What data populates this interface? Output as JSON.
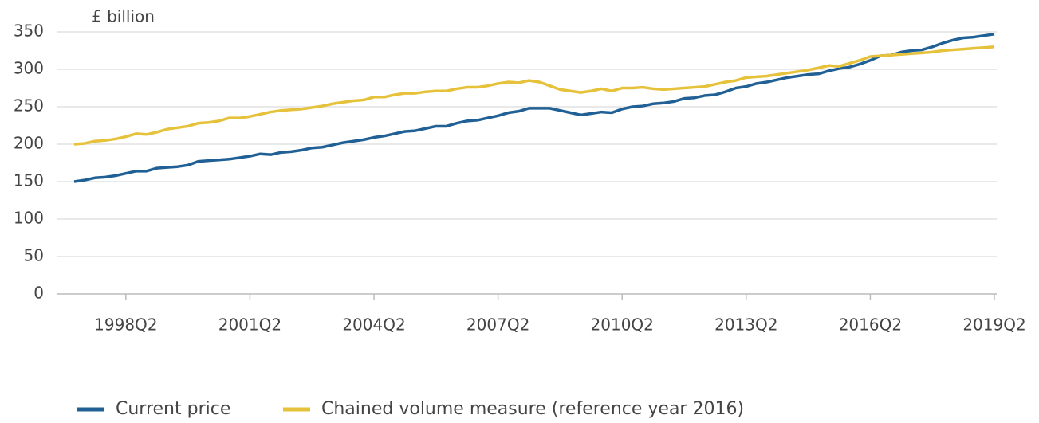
{
  "chart_data": {
    "type": "line",
    "y_label": "£ billion",
    "categories": [
      null,
      null,
      null,
      null,
      null,
      "1998Q2",
      null,
      null,
      null,
      null,
      null,
      null,
      null,
      null,
      null,
      null,
      null,
      "2001Q2",
      null,
      null,
      null,
      null,
      null,
      null,
      null,
      null,
      null,
      null,
      null,
      "2004Q2",
      null,
      null,
      null,
      null,
      null,
      null,
      null,
      null,
      null,
      null,
      null,
      "2007Q2",
      null,
      null,
      null,
      null,
      null,
      null,
      null,
      null,
      null,
      null,
      null,
      "2010Q2",
      null,
      null,
      null,
      null,
      null,
      null,
      null,
      null,
      null,
      null,
      null,
      "2013Q2",
      null,
      null,
      null,
      null,
      null,
      null,
      null,
      null,
      null,
      null,
      null,
      "2016Q2",
      null,
      null,
      null,
      null,
      null,
      null,
      null,
      null,
      null,
      null,
      null,
      "2019Q2"
    ],
    "series": [
      {
        "name": "Current price",
        "color": "#206095",
        "values": [
          150,
          152,
          155,
          156,
          158,
          161,
          164,
          164,
          168,
          169,
          170,
          172,
          177,
          178,
          179,
          180,
          182,
          184,
          187,
          186,
          189,
          190,
          192,
          195,
          196,
          199,
          202,
          204,
          206,
          209,
          211,
          214,
          217,
          218,
          221,
          224,
          224,
          228,
          231,
          232,
          235,
          238,
          242,
          244,
          248,
          248,
          248,
          245,
          242,
          239,
          241,
          243,
          242,
          247,
          250,
          251,
          254,
          255,
          257,
          261,
          262,
          265,
          266,
          270,
          275,
          277,
          281,
          283,
          286,
          289,
          291,
          293,
          294,
          298,
          301,
          303,
          307,
          312,
          318,
          319,
          323,
          325,
          326,
          330,
          335,
          339,
          342,
          343,
          345,
          347
        ]
      },
      {
        "name": "Chained volume measure (reference year 2016)",
        "color": "#e6c13a",
        "values": [
          200,
          201,
          204,
          205,
          207,
          210,
          214,
          213,
          216,
          220,
          222,
          224,
          228,
          229,
          231,
          235,
          235,
          237,
          240,
          243,
          245,
          246,
          247,
          249,
          251,
          254,
          256,
          258,
          259,
          263,
          263,
          266,
          268,
          268,
          270,
          271,
          271,
          274,
          276,
          276,
          278,
          281,
          283,
          282,
          285,
          283,
          278,
          273,
          271,
          269,
          271,
          274,
          271,
          275,
          275,
          276,
          274,
          273,
          274,
          275,
          276,
          277,
          280,
          283,
          285,
          289,
          290,
          291,
          293,
          295,
          297,
          299,
          302,
          305,
          304,
          308,
          312,
          317,
          318,
          319,
          320,
          321,
          322,
          323,
          325,
          326,
          327,
          328,
          329,
          330
        ]
      }
    ],
    "ylim": [
      0,
      350
    ],
    "yticks": [
      0,
      50,
      100,
      150,
      200,
      250,
      300,
      350
    ],
    "grid": true
  }
}
